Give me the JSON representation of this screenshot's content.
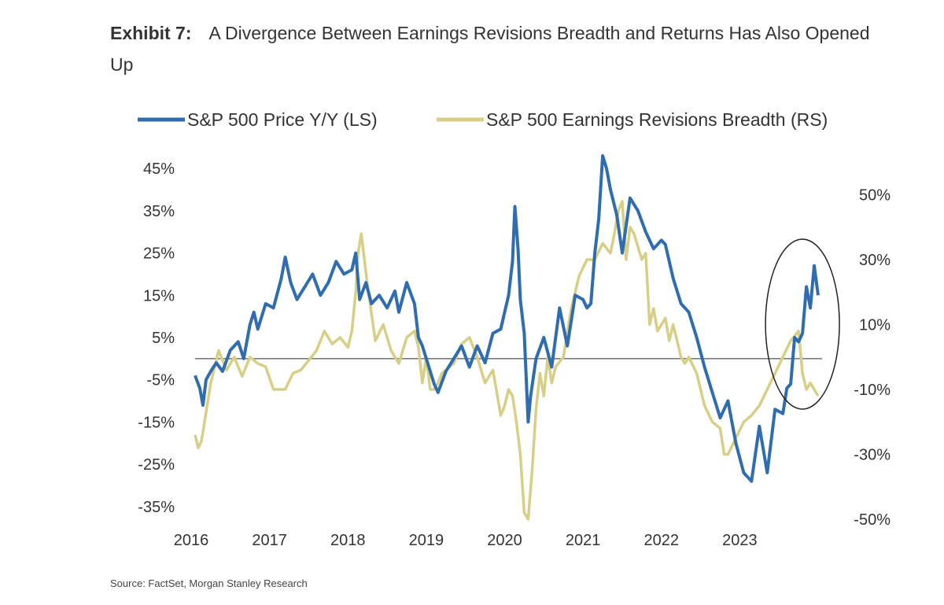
{
  "title": {
    "label": "Exhibit 7:",
    "text": "A Divergence Between Earnings Revisions Breadth and Returns Has Also Opened Up"
  },
  "source": "Source: FactSet, Morgan Stanley Research",
  "colors": {
    "price": "#2f6db0",
    "revisions": "#d8cf86",
    "zero_line": "#555555",
    "circle": "#222222"
  },
  "chart_data": {
    "type": "line",
    "title": "A Divergence Between Earnings Revisions Breadth and Returns Has Also Opened Up",
    "xlabel": "",
    "x_ticks": [
      "2016",
      "2017",
      "2018",
      "2019",
      "2020",
      "2021",
      "2022",
      "2023"
    ],
    "x_range": [
      2016.0,
      2024.0
    ],
    "y_left": {
      "label": "LS",
      "range": [
        -38,
        48
      ],
      "ticks": [
        "45%",
        "35%",
        "25%",
        "15%",
        "5%",
        "-5%",
        "-15%",
        "-25%",
        "-35%"
      ],
      "tick_values": [
        45,
        35,
        25,
        15,
        5,
        -5,
        -15,
        -25,
        -35
      ]
    },
    "y_right": {
      "label": "RS",
      "range": [
        -50,
        62
      ],
      "ticks": [
        "50%",
        "30%",
        "10%",
        "-10%",
        "-30%",
        "-50%"
      ],
      "tick_values": [
        50,
        30,
        10,
        -10,
        -30,
        -50
      ]
    },
    "legend": [
      "S&P 500 Price Y/Y (LS)",
      "S&P 500 Earnings Revisions Breadth (RS)"
    ],
    "annotation": "circle around 2023 divergence",
    "series": [
      {
        "name": "S&P 500 Price Y/Y (LS)",
        "axis": "left",
        "x": [
          2016.0,
          2016.06,
          2016.1,
          2016.14,
          2016.2,
          2016.27,
          2016.35,
          2016.45,
          2016.55,
          2016.62,
          2016.7,
          2016.75,
          2016.8,
          2016.9,
          2017.0,
          2017.1,
          2017.15,
          2017.22,
          2017.3,
          2017.4,
          2017.5,
          2017.6,
          2017.7,
          2017.8,
          2017.9,
          2018.0,
          2018.05,
          2018.1,
          2018.18,
          2018.25,
          2018.35,
          2018.45,
          2018.55,
          2018.6,
          2018.7,
          2018.8,
          2018.85,
          2018.9,
          2019.0,
          2019.05,
          2019.1,
          2019.2,
          2019.3,
          2019.4,
          2019.5,
          2019.6,
          2019.7,
          2019.8,
          2019.9,
          2020.0,
          2020.05,
          2020.08,
          2020.12,
          2020.15,
          2020.2,
          2020.25,
          2020.28,
          2020.35,
          2020.45,
          2020.55,
          2020.65,
          2020.75,
          2020.85,
          2020.95,
          2021.0,
          2021.05,
          2021.1,
          2021.15,
          2021.2,
          2021.25,
          2021.3,
          2021.38,
          2021.45,
          2021.55,
          2021.65,
          2021.75,
          2021.85,
          2021.95,
          2022.0,
          2022.1,
          2022.2,
          2022.3,
          2022.4,
          2022.5,
          2022.6,
          2022.7,
          2022.8,
          2022.9,
          2023.0,
          2023.1,
          2023.2,
          2023.3,
          2023.4,
          2023.5,
          2023.55,
          2023.6,
          2023.65,
          2023.7,
          2023.75,
          2023.8,
          2023.85,
          2023.9,
          2023.95
        ],
        "y": [
          -4,
          -7,
          -11,
          -5,
          -3,
          -1,
          -3,
          2,
          4,
          0,
          8,
          11,
          7,
          13,
          12,
          19,
          24,
          18,
          14,
          17,
          20,
          15,
          18,
          23,
          20,
          21,
          25,
          14,
          18,
          13,
          15,
          12,
          16,
          11,
          18,
          13,
          5,
          3,
          -3,
          -6,
          -8,
          -3,
          0,
          3,
          -2,
          3,
          -1,
          6,
          7,
          15,
          23,
          36,
          26,
          14,
          6,
          -15,
          -9,
          0,
          5,
          -2,
          12,
          3,
          15,
          14,
          12,
          13,
          25,
          33,
          48,
          45,
          40,
          34,
          25,
          38,
          35,
          30,
          26,
          28,
          27,
          19,
          13,
          11,
          5,
          -2,
          -8,
          -14,
          -10,
          -20,
          -27,
          -29,
          -16,
          -27,
          -12,
          -13,
          -7,
          -6,
          5,
          4,
          6,
          17,
          12,
          22,
          15
        ],
        "values": [
          -4,
          -7,
          -11,
          -5,
          -3,
          -1,
          -3,
          2,
          4,
          0,
          8,
          11,
          7,
          13,
          12,
          19,
          24,
          18,
          14,
          17,
          20,
          15,
          18,
          23,
          20,
          21,
          25,
          14,
          18,
          13,
          15,
          12,
          16,
          11,
          18,
          13,
          5,
          3,
          -3,
          -6,
          -8,
          -3,
          0,
          3,
          -2,
          3,
          -1,
          6,
          7,
          15,
          23,
          36,
          26,
          14,
          6,
          -15,
          -9,
          0,
          5,
          -2,
          12,
          3,
          15,
          14,
          12,
          13,
          25,
          33,
          48,
          45,
          40,
          34,
          25,
          38,
          35,
          30,
          26,
          28,
          27,
          19,
          13,
          11,
          5,
          -2,
          -8,
          -14,
          -10,
          -20,
          -27,
          -29,
          -16,
          -27,
          -12,
          -13,
          -7,
          -6,
          5,
          4,
          6,
          17,
          12,
          22,
          15
        ]
      },
      {
        "name": "S&P 500 Earnings Revisions Breadth (RS)",
        "axis": "right",
        "x": [
          2016.0,
          2016.04,
          2016.08,
          2016.12,
          2016.2,
          2016.3,
          2016.4,
          2016.5,
          2016.6,
          2016.7,
          2016.8,
          2016.9,
          2017.0,
          2017.15,
          2017.25,
          2017.35,
          2017.45,
          2017.55,
          2017.65,
          2017.75,
          2017.85,
          2017.95,
          2018.0,
          2018.05,
          2018.08,
          2018.12,
          2018.2,
          2018.3,
          2018.4,
          2018.5,
          2018.6,
          2018.7,
          2018.8,
          2018.85,
          2018.9,
          2018.95,
          2019.0,
          2019.05,
          2019.1,
          2019.15,
          2019.2,
          2019.3,
          2019.4,
          2019.5,
          2019.6,
          2019.7,
          2019.8,
          2019.9,
          2019.95,
          2020.0,
          2020.05,
          2020.1,
          2020.15,
          2020.2,
          2020.25,
          2020.3,
          2020.35,
          2020.4,
          2020.45,
          2020.5,
          2020.55,
          2020.6,
          2020.7,
          2020.8,
          2020.9,
          2021.0,
          2021.1,
          2021.2,
          2021.3,
          2021.35,
          2021.4,
          2021.45,
          2021.5,
          2021.55,
          2021.6,
          2021.7,
          2021.75,
          2021.8,
          2021.85,
          2021.9,
          2022.0,
          2022.05,
          2022.1,
          2022.2,
          2022.25,
          2022.3,
          2022.4,
          2022.5,
          2022.6,
          2022.7,
          2022.75,
          2022.8,
          2022.9,
          2023.0,
          2023.1,
          2023.2,
          2023.3,
          2023.4,
          2023.5,
          2023.6,
          2023.7,
          2023.75,
          2023.8,
          2023.85,
          2023.9,
          2023.95
        ],
        "values": [
          -24,
          -28,
          -26,
          -20,
          -8,
          2,
          -4,
          0,
          -6,
          0,
          -2,
          -3,
          -10,
          -10,
          -5,
          -4,
          -1,
          2,
          8,
          4,
          6,
          3,
          8,
          20,
          32,
          38,
          22,
          5,
          10,
          2,
          -2,
          6,
          8,
          3,
          -8,
          0,
          -10,
          -10,
          -8,
          -5,
          -4,
          -2,
          4,
          6,
          0,
          -8,
          -4,
          -18,
          -15,
          -10,
          -12,
          -20,
          -30,
          -48,
          -50,
          -35,
          -16,
          -5,
          -12,
          0,
          -8,
          -3,
          0,
          15,
          25,
          30,
          30,
          35,
          32,
          38,
          45,
          48,
          30,
          40,
          38,
          30,
          32,
          10,
          15,
          8,
          12,
          5,
          10,
          0,
          -2,
          0,
          -5,
          -15,
          -20,
          -22,
          -30,
          -30,
          -25,
          -20,
          -18,
          -15,
          -10,
          -5,
          0,
          5,
          8,
          -5,
          -10,
          -8,
          -10,
          -12
        ]
      }
    ]
  }
}
